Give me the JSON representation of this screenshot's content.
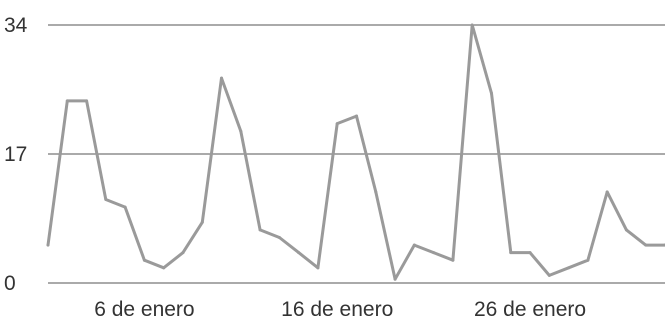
{
  "chart_data": {
    "type": "line",
    "title": "",
    "xlabel": "",
    "ylabel": "",
    "ylim": [
      0,
      34
    ],
    "y_ticks": [
      0,
      17,
      34
    ],
    "y_tick_labels": [
      "0",
      "17",
      "34"
    ],
    "x_tick_labels": [
      "6 de enero",
      "16 de enero",
      "26 de enero"
    ],
    "x_tick_days": [
      6,
      16,
      26
    ],
    "grid": "horizontal",
    "legend": "none",
    "colors": {
      "series": "#9a9a9a",
      "grid": "#555555",
      "text": "#333333"
    },
    "series": [
      {
        "x": [
          1,
          2,
          3,
          4,
          5,
          6,
          7,
          8,
          9,
          10,
          11,
          12,
          13,
          14,
          15,
          16,
          17,
          18,
          19,
          20,
          21,
          22,
          23,
          24,
          25,
          26,
          27,
          28,
          29,
          30,
          31,
          32,
          33
        ],
        "values": [
          5,
          24,
          24,
          11,
          10,
          3,
          2,
          4,
          8,
          27,
          20,
          7,
          6,
          4,
          2,
          21,
          22,
          12,
          0.5,
          5,
          4,
          3,
          34,
          25,
          4,
          4,
          1,
          2,
          3,
          12,
          7,
          5,
          5
        ]
      }
    ]
  }
}
